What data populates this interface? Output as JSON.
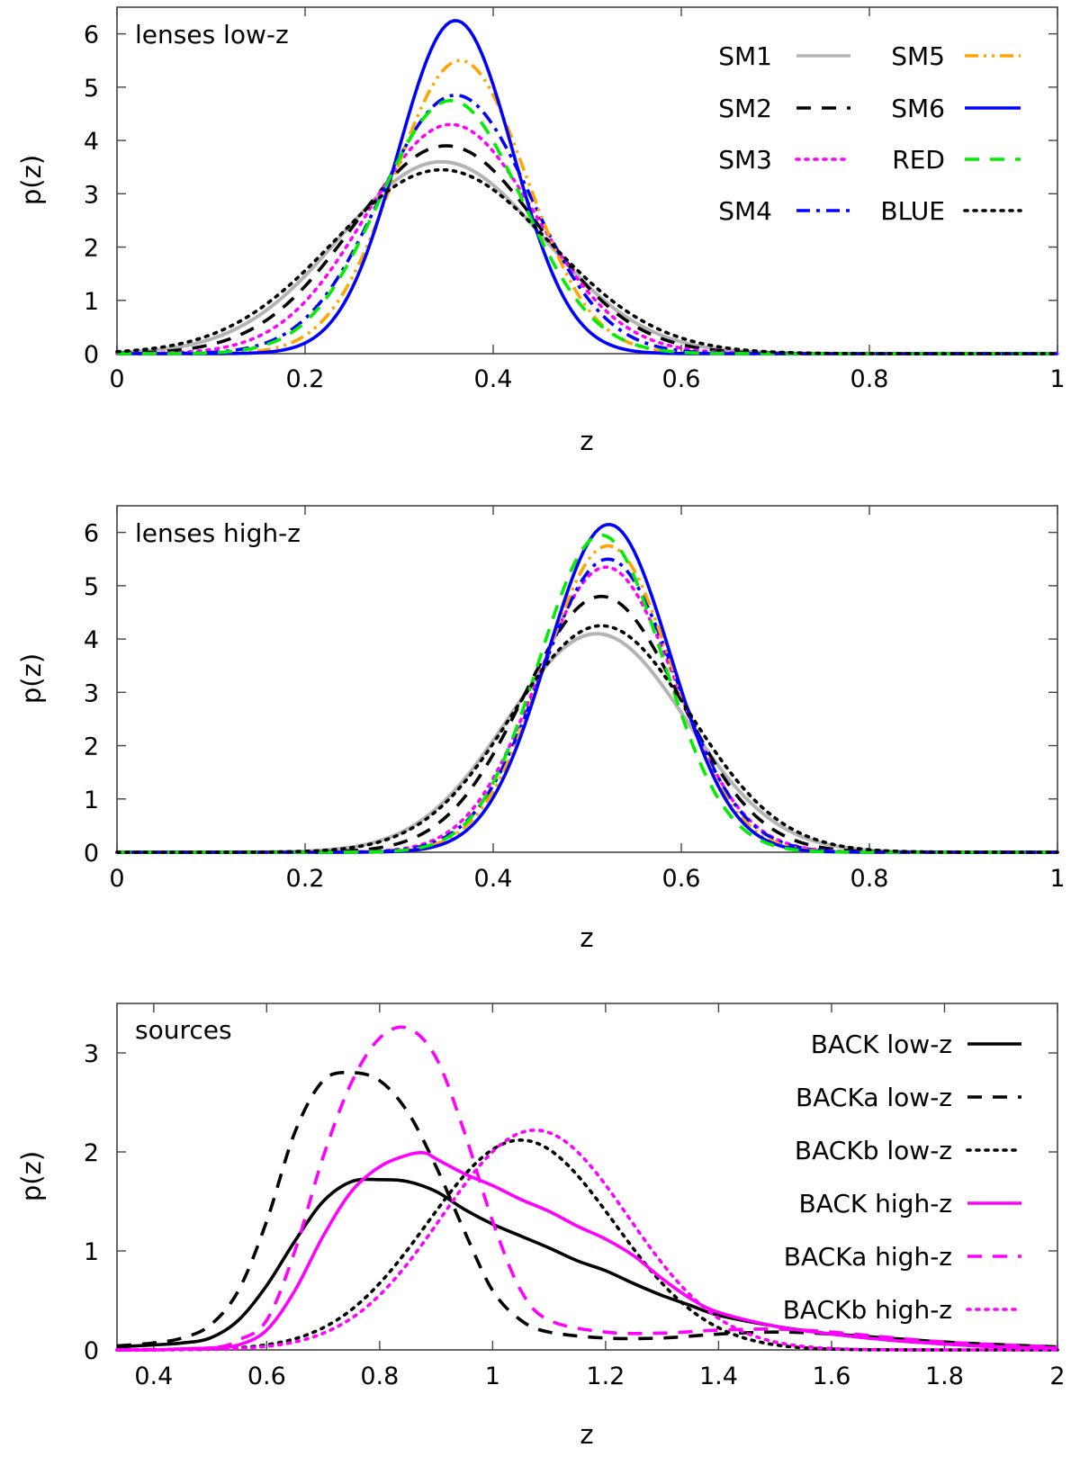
{
  "chart_data": [
    {
      "type": "line",
      "title": "",
      "panel_label": "lenses low-z",
      "xlabel": "z",
      "ylabel": "p(z)",
      "xlim": [
        0,
        1
      ],
      "ylim": [
        0,
        6.5
      ],
      "xticks": [
        0,
        0.2,
        0.4,
        0.6,
        0.8,
        1
      ],
      "xtick_labels": [
        "0",
        "0.2",
        "0.4",
        "0.6",
        "0.8",
        "1"
      ],
      "yticks": [
        0,
        1,
        2,
        3,
        4,
        5,
        6
      ],
      "ytick_labels": [
        "0",
        "1",
        "2",
        "3",
        "4",
        "5",
        "6"
      ],
      "legend_position": "top-right",
      "legend_columns": 2,
      "series": [
        {
          "name": "SM1",
          "color": "#b4b4b4",
          "style": "solid",
          "kind": "gauss",
          "mu": 0.345,
          "sigma": 0.108,
          "peak": 3.6
        },
        {
          "name": "SM2",
          "color": "#000000",
          "style": "dashed",
          "kind": "gauss",
          "mu": 0.35,
          "sigma": 0.1,
          "peak": 3.9
        },
        {
          "name": "SM3",
          "color": "#ff00ff",
          "style": "dotted",
          "kind": "gauss",
          "mu": 0.355,
          "sigma": 0.09,
          "peak": 4.3
        },
        {
          "name": "SM4",
          "color": "#0000ff",
          "style": "dashdot",
          "kind": "gauss",
          "mu": 0.36,
          "sigma": 0.08,
          "peak": 4.85
        },
        {
          "name": "SM5",
          "color": "#ffa500",
          "style": "dashdotdot",
          "kind": "gauss",
          "mu": 0.365,
          "sigma": 0.07,
          "peak": 5.5
        },
        {
          "name": "SM6",
          "color": "#0000ff",
          "style": "solid",
          "kind": "gauss",
          "mu": 0.36,
          "sigma": 0.061,
          "peak": 6.25
        },
        {
          "name": "RED",
          "color": "#00ee00",
          "style": "dashed",
          "kind": "gauss",
          "mu": 0.355,
          "sigma": 0.076,
          "peak": 4.75
        },
        {
          "name": "BLUE",
          "color": "#000000",
          "style": "dotted",
          "kind": "gauss",
          "mu": 0.345,
          "sigma": 0.115,
          "peak": 3.45
        }
      ]
    },
    {
      "type": "line",
      "title": "",
      "panel_label": "lenses high-z",
      "xlabel": "z",
      "ylabel": "p(z)",
      "xlim": [
        0,
        1
      ],
      "ylim": [
        0,
        6.5
      ],
      "xticks": [
        0,
        0.2,
        0.4,
        0.6,
        0.8,
        1
      ],
      "xtick_labels": [
        "0",
        "0.2",
        "0.4",
        "0.6",
        "0.8",
        "1"
      ],
      "yticks": [
        0,
        1,
        2,
        3,
        4,
        5,
        6
      ],
      "ytick_labels": [
        "0",
        "1",
        "2",
        "3",
        "4",
        "5",
        "6"
      ],
      "series": [
        {
          "name": "SM1",
          "color": "#b4b4b4",
          "style": "solid",
          "kind": "gauss",
          "mu": 0.51,
          "sigma": 0.095,
          "peak": 4.1
        },
        {
          "name": "SM2",
          "color": "#000000",
          "style": "dashed",
          "kind": "gauss",
          "mu": 0.515,
          "sigma": 0.083,
          "peak": 4.8
        },
        {
          "name": "SM3",
          "color": "#ff00ff",
          "style": "dotted",
          "kind": "gauss",
          "mu": 0.52,
          "sigma": 0.073,
          "peak": 5.35
        },
        {
          "name": "SM4",
          "color": "#0000ff",
          "style": "dashdot",
          "kind": "gauss",
          "mu": 0.522,
          "sigma": 0.071,
          "peak": 5.5
        },
        {
          "name": "SM5",
          "color": "#ffa500",
          "style": "dashdotdot",
          "kind": "gauss",
          "mu": 0.522,
          "sigma": 0.068,
          "peak": 5.75
        },
        {
          "name": "SM6",
          "color": "#0000ff",
          "style": "solid",
          "kind": "gauss",
          "mu": 0.523,
          "sigma": 0.065,
          "peak": 6.15
        },
        {
          "name": "RED",
          "color": "#00ee00",
          "style": "dashed",
          "kind": "gauss",
          "mu": 0.515,
          "sigma": 0.066,
          "peak": 5.95
        },
        {
          "name": "BLUE",
          "color": "#000000",
          "style": "dotted",
          "kind": "gauss",
          "mu": 0.515,
          "sigma": 0.095,
          "peak": 4.25
        }
      ]
    },
    {
      "type": "line",
      "title": "",
      "panel_label": "sources",
      "xlabel": "z",
      "ylabel": "p(z)",
      "xlim": [
        0.335,
        2
      ],
      "ylim": [
        0,
        3.5
      ],
      "xticks": [
        0.4,
        0.6,
        0.8,
        1,
        1.2,
        1.4,
        1.6,
        1.8,
        2
      ],
      "xtick_labels": [
        "0.4",
        "0.6",
        "0.8",
        "1",
        "1.2",
        "1.4",
        "1.6",
        "1.8",
        "2"
      ],
      "yticks": [
        0,
        1,
        2,
        3
      ],
      "ytick_labels": [
        "0",
        "1",
        "2",
        "3"
      ],
      "legend_position": "right",
      "legend_columns": 1,
      "series": [
        {
          "name": "BACK low-z",
          "color": "#000000",
          "style": "solid",
          "kind": "points",
          "x": [
            0.335,
            0.4,
            0.45,
            0.5,
            0.55,
            0.6,
            0.65,
            0.7,
            0.75,
            0.8,
            0.85,
            0.9,
            0.95,
            1.0,
            1.05,
            1.1,
            1.15,
            1.2,
            1.25,
            1.3,
            1.35,
            1.4,
            1.5,
            1.6,
            1.7,
            1.8,
            1.9,
            2.0
          ],
          "y": [
            0.03,
            0.05,
            0.07,
            0.12,
            0.3,
            0.65,
            1.1,
            1.5,
            1.7,
            1.72,
            1.7,
            1.6,
            1.42,
            1.27,
            1.15,
            1.03,
            0.9,
            0.8,
            0.67,
            0.55,
            0.45,
            0.35,
            0.24,
            0.16,
            0.1,
            0.06,
            0.03,
            0.02
          ]
        },
        {
          "name": "BACKa low-z",
          "color": "#000000",
          "style": "dashed",
          "kind": "points",
          "x": [
            0.335,
            0.4,
            0.45,
            0.5,
            0.55,
            0.6,
            0.65,
            0.7,
            0.75,
            0.8,
            0.85,
            0.9,
            0.95,
            1.0,
            1.05,
            1.1,
            1.2,
            1.3,
            1.4,
            1.5,
            1.6,
            1.8,
            2.0
          ],
          "y": [
            0.04,
            0.07,
            0.12,
            0.25,
            0.6,
            1.3,
            2.2,
            2.72,
            2.8,
            2.72,
            2.4,
            1.85,
            1.2,
            0.6,
            0.3,
            0.18,
            0.12,
            0.12,
            0.16,
            0.18,
            0.16,
            0.08,
            0.03
          ]
        },
        {
          "name": "BACKb low-z",
          "color": "#000000",
          "style": "dotted",
          "kind": "gauss",
          "mu": 1.05,
          "sigma": 0.165,
          "peak": 2.12
        },
        {
          "name": "BACK high-z",
          "color": "#ff00ff",
          "style": "solid",
          "kind": "points",
          "x": [
            0.335,
            0.4,
            0.45,
            0.5,
            0.55,
            0.6,
            0.65,
            0.7,
            0.75,
            0.8,
            0.85,
            0.88,
            0.9,
            0.95,
            1.0,
            1.05,
            1.1,
            1.15,
            1.2,
            1.25,
            1.3,
            1.35,
            1.4,
            1.5,
            1.6,
            1.7,
            1.8,
            1.9,
            2.0
          ],
          "y": [
            0.0,
            0.0,
            0.01,
            0.02,
            0.05,
            0.2,
            0.6,
            1.15,
            1.6,
            1.85,
            1.97,
            1.99,
            1.93,
            1.78,
            1.66,
            1.52,
            1.4,
            1.25,
            1.12,
            0.95,
            0.72,
            0.52,
            0.38,
            0.24,
            0.16,
            0.1,
            0.06,
            0.03,
            0.02
          ]
        },
        {
          "name": "BACKa high-z",
          "color": "#ff00ff",
          "style": "dashed",
          "kind": "points",
          "x": [
            0.335,
            0.5,
            0.55,
            0.6,
            0.65,
            0.7,
            0.75,
            0.8,
            0.85,
            0.9,
            0.95,
            1.0,
            1.05,
            1.1,
            1.2,
            1.3,
            1.4,
            1.5,
            1.6,
            1.8,
            2.0
          ],
          "y": [
            0.0,
            0.02,
            0.1,
            0.3,
            1.0,
            1.95,
            2.7,
            3.15,
            3.25,
            2.95,
            2.2,
            1.3,
            0.6,
            0.3,
            0.18,
            0.17,
            0.2,
            0.21,
            0.18,
            0.08,
            0.03
          ]
        },
        {
          "name": "BACKb high-z",
          "color": "#ff00ff",
          "style": "dotted",
          "kind": "gauss",
          "mu": 1.075,
          "sigma": 0.165,
          "peak": 2.22
        }
      ]
    }
  ]
}
